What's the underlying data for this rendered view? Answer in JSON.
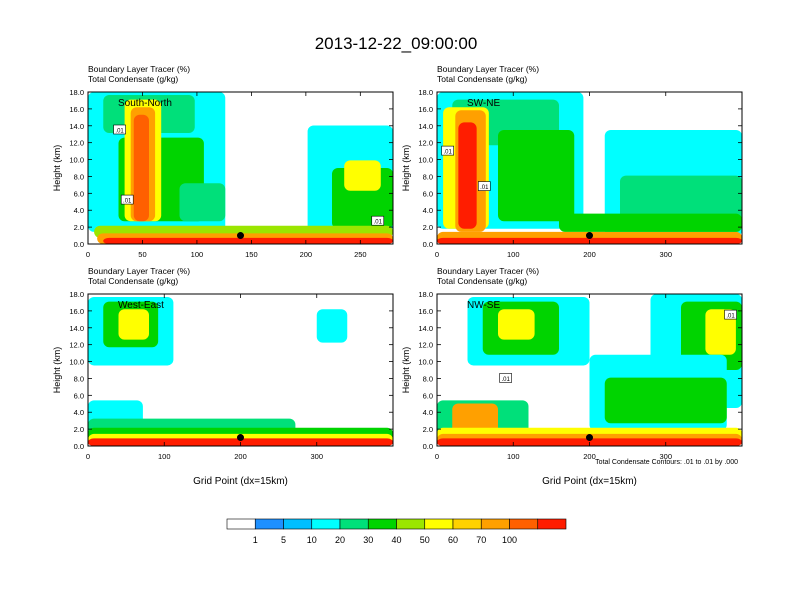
{
  "figure": {
    "title": "2013-12-22_09:00:00",
    "footnote": "Total Condensate Contours: .01 to .01 by .000"
  },
  "colorbar": {
    "labels": [
      "1",
      "5",
      "10",
      "20",
      "30",
      "40",
      "50",
      "60",
      "70",
      "100"
    ],
    "colors": [
      "#ffffff",
      "#1e90ff",
      "#00bfff",
      "#00ffff",
      "#00e07a",
      "#00d400",
      "#9be600",
      "#ffff00",
      "#ffd200",
      "#ffa000",
      "#ff6000",
      "#ff1d00"
    ]
  },
  "chart_data": [
    {
      "type": "heatmap",
      "panel": "South-North",
      "title": "Boundary Layer Tracer   (%)",
      "subtitle": "Total Condensate   (g/kg)",
      "xlabel": "",
      "ylabel": "Height (km)",
      "xlim": [
        0,
        280
      ],
      "ylim": [
        0,
        18
      ],
      "xticks": [
        "0",
        "50",
        "100",
        "150",
        "200",
        "250"
      ],
      "xtick_values": [
        0,
        50,
        100,
        150,
        200,
        250
      ],
      "yticks": [
        "0.0",
        "2.0",
        "4.0",
        "6.0",
        "8.0",
        "10.0",
        "12.0",
        "14.0",
        "16.0",
        "18.0"
      ],
      "marker": {
        "x": 140,
        "y": 1.0
      },
      "contour_labels": [
        {
          "text": ".01",
          "x": 29,
          "y": 13.5
        },
        {
          "text": ".01",
          "x": 36,
          "y": 5.2
        },
        {
          "text": ".01",
          "x": 266,
          "y": 2.7
        }
      ],
      "grid": false
    },
    {
      "type": "heatmap",
      "panel": "SW-NE",
      "title": "Boundary Layer Tracer   (%)",
      "subtitle": "Total Condensate   (g/kg)",
      "xlabel": "",
      "ylabel": "Height (km)",
      "xlim": [
        0,
        400
      ],
      "ylim": [
        0,
        18
      ],
      "xticks": [
        "0",
        "100",
        "200",
        "300"
      ],
      "xtick_values": [
        0,
        100,
        200,
        300
      ],
      "yticks": [
        "0.0",
        "2.0",
        "4.0",
        "6.0",
        "8.0",
        "10.0",
        "12.0",
        "14.0",
        "16.0",
        "18.0"
      ],
      "marker": {
        "x": 200,
        "y": 1.0
      },
      "contour_labels": [
        {
          "text": ".01",
          "x": 14,
          "y": 11.0
        },
        {
          "text": ".01",
          "x": 62,
          "y": 6.8
        }
      ],
      "grid": false
    },
    {
      "type": "heatmap",
      "panel": "West-East",
      "title": "Boundary Layer Tracer   (%)",
      "subtitle": "Total Condensate   (g/kg)",
      "xlabel": "Grid Point (dx=15km)",
      "ylabel": "Height (km)",
      "xlim": [
        0,
        400
      ],
      "ylim": [
        0,
        18
      ],
      "xticks": [
        "0",
        "100",
        "200",
        "300"
      ],
      "xtick_values": [
        0,
        100,
        200,
        300
      ],
      "yticks": [
        "0.0",
        "2.0",
        "4.0",
        "6.0",
        "8.0",
        "10.0",
        "12.0",
        "14.0",
        "16.0",
        "18.0"
      ],
      "marker": {
        "x": 200,
        "y": 1.0
      },
      "contour_labels": [],
      "grid": false
    },
    {
      "type": "heatmap",
      "panel": "NW-SE",
      "title": "Boundary Layer Tracer   (%)",
      "subtitle": "Total Condensate   (g/kg)",
      "xlabel": "Grid Point (dx=15km)",
      "ylabel": "Height (km)",
      "xlim": [
        0,
        400
      ],
      "ylim": [
        0,
        18
      ],
      "xticks": [
        "0",
        "100",
        "200",
        "300"
      ],
      "xtick_values": [
        0,
        100,
        200,
        300
      ],
      "yticks": [
        "0.0",
        "2.0",
        "4.0",
        "6.0",
        "8.0",
        "10.0",
        "12.0",
        "14.0",
        "16.0",
        "18.0"
      ],
      "marker": {
        "x": 200,
        "y": 1.0
      },
      "contour_labels": [
        {
          "text": ".01",
          "x": 90,
          "y": 8.0
        },
        {
          "text": ".01",
          "x": 385,
          "y": 15.5
        }
      ],
      "grid": false
    }
  ]
}
